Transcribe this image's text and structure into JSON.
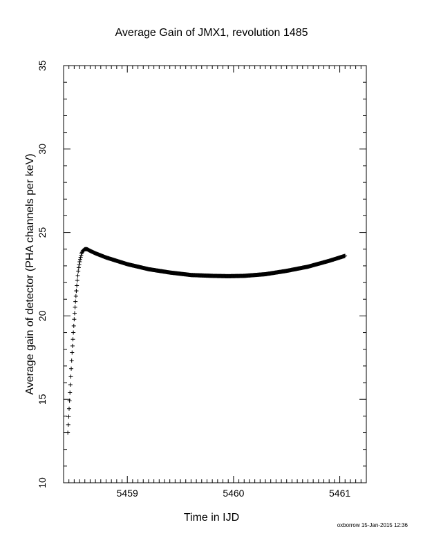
{
  "chart_data": {
    "type": "scatter",
    "title": "Average Gain of JMX1, revolution 1485",
    "xlabel": "Time in IJD",
    "ylabel": "Average gain of detector (PHA channels per keV)",
    "xlim": [
      5458.4,
      5461.25
    ],
    "ylim": [
      10,
      35
    ],
    "xticks": [
      5459,
      5460,
      5461
    ],
    "yticks": [
      10,
      15,
      20,
      25,
      30,
      35
    ],
    "x_tick_labels": [
      "5459",
      "5460",
      "5461"
    ],
    "y_tick_labels": [
      "10",
      "15",
      "20",
      "25",
      "30",
      "35"
    ],
    "marker": "+",
    "grid": false,
    "series": [
      {
        "x": [
          5458.44,
          5458.445,
          5458.45,
          5458.455,
          5458.46,
          5458.465,
          5458.47,
          5458.475,
          5458.48,
          5458.49,
          5458.5,
          5458.51,
          5458.52,
          5458.53,
          5458.54,
          5458.55,
          5458.56,
          5458.57,
          5458.58,
          5458.6,
          5458.62,
          5458.65,
          5458.7,
          5458.8,
          5458.9,
          5459.0,
          5459.2,
          5459.4,
          5459.6,
          5459.8,
          5459.95,
          5460.1,
          5460.3,
          5460.5,
          5460.7,
          5460.9,
          5461.05
        ],
        "y": [
          13.0,
          13.6,
          14.2,
          14.8,
          15.4,
          16.0,
          16.6,
          17.2,
          17.8,
          18.8,
          19.8,
          20.7,
          21.5,
          22.2,
          22.8,
          23.2,
          23.5,
          23.75,
          23.9,
          24.0,
          24.0,
          23.9,
          23.75,
          23.5,
          23.3,
          23.1,
          22.8,
          22.6,
          22.45,
          22.4,
          22.38,
          22.4,
          22.5,
          22.7,
          22.95,
          23.3,
          23.6
        ]
      }
    ]
  },
  "footer": "oxborrow 15-Jan-2015 12:36"
}
